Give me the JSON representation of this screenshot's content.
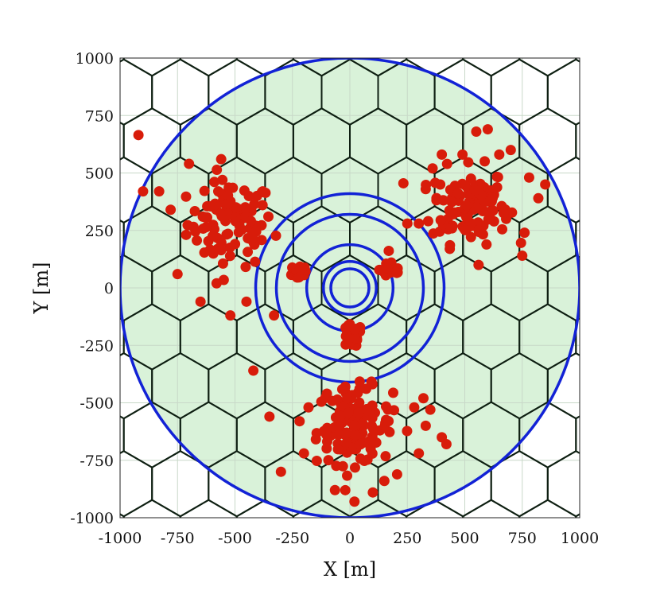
{
  "chart_data": {
    "type": "scatter",
    "title": "",
    "xlabel": "X [m]",
    "ylabel": "Y [m]",
    "xlim": [
      -1000,
      1000
    ],
    "ylim": [
      -1000,
      1000
    ],
    "xticks": [
      -1000,
      -750,
      -500,
      -250,
      0,
      250,
      500,
      750,
      1000
    ],
    "yticks": [
      -1000,
      -750,
      -500,
      -250,
      0,
      250,
      500,
      750,
      1000
    ],
    "xtick_labels": [
      "-1000",
      "-750",
      "-500",
      "-250",
      "0",
      "250",
      "500",
      "750",
      "1000"
    ],
    "ytick_labels": [
      "-1000",
      "-750",
      "-500",
      "-250",
      "0",
      "250",
      "500",
      "750",
      "1000"
    ],
    "grid": true,
    "colors": {
      "coverage_fill": "#d9f2d9",
      "grid": "#c8d8c8",
      "cell_edges": "#0e1f12",
      "rings": "#1222d6",
      "users": "#d81c0a"
    },
    "coverage_radius": 1000,
    "hex_cell_radius": 142,
    "rings": [
      {
        "cx": 0,
        "cy": 0,
        "r": 83
      },
      {
        "cx": 0,
        "cy": 0,
        "r": 115
      },
      {
        "cx": 0,
        "cy": 0,
        "r": 188
      },
      {
        "cx": 0,
        "cy": 0,
        "r": 320
      },
      {
        "cx": 0,
        "cy": 0,
        "r": 410
      },
      {
        "cx": 0,
        "cy": 0,
        "r": 1000
      }
    ],
    "clusters": [
      {
        "name": "northwest",
        "center": [
          -520,
          280
        ],
        "spread": 170,
        "count": 95
      },
      {
        "name": "northeast",
        "center": [
          520,
          360
        ],
        "spread": 150,
        "count": 115
      },
      {
        "name": "south",
        "center": [
          20,
          -600
        ],
        "spread": 150,
        "count": 125
      },
      {
        "name": "inner-left",
        "center": [
          -220,
          70
        ],
        "spread": 40,
        "count": 22
      },
      {
        "name": "inner-right",
        "center": [
          180,
          80
        ],
        "spread": 45,
        "count": 18
      },
      {
        "name": "inner-bottom",
        "center": [
          5,
          -210
        ],
        "spread": 45,
        "count": 28
      }
    ],
    "points": [
      [
        -920,
        665
      ],
      [
        -900,
        420
      ],
      [
        -780,
        340
      ],
      [
        -640,
        310
      ],
      [
        -560,
        560
      ],
      [
        -420,
        200
      ],
      [
        -580,
        20
      ],
      [
        -650,
        -60
      ],
      [
        -520,
        -120
      ],
      [
        -450,
        -60
      ],
      [
        -330,
        -120
      ],
      [
        -750,
        60
      ],
      [
        -830,
        420
      ],
      [
        -700,
        540
      ],
      [
        700,
        600
      ],
      [
        650,
        580
      ],
      [
        550,
        680
      ],
      [
        600,
        690
      ],
      [
        780,
        480
      ],
      [
        820,
        390
      ],
      [
        680,
        300
      ],
      [
        760,
        240
      ],
      [
        750,
        140
      ],
      [
        850,
        450
      ],
      [
        400,
        580
      ],
      [
        330,
        430
      ],
      [
        250,
        280
      ],
      [
        490,
        580
      ],
      [
        360,
        520
      ],
      [
        560,
        100
      ],
      [
        300,
        280
      ],
      [
        -350,
        -560
      ],
      [
        -300,
        -800
      ],
      [
        -200,
        -720
      ],
      [
        -180,
        -520
      ],
      [
        280,
        -520
      ],
      [
        350,
        -530
      ],
      [
        400,
        -650
      ],
      [
        420,
        -680
      ],
      [
        300,
        -720
      ],
      [
        20,
        -930
      ],
      [
        -20,
        -880
      ],
      [
        100,
        -890
      ],
      [
        150,
        -840
      ],
      [
        330,
        -600
      ],
      [
        -100,
        -460
      ],
      [
        -20,
        -430
      ],
      [
        320,
        -480
      ],
      [
        -420,
        -360
      ]
    ]
  }
}
